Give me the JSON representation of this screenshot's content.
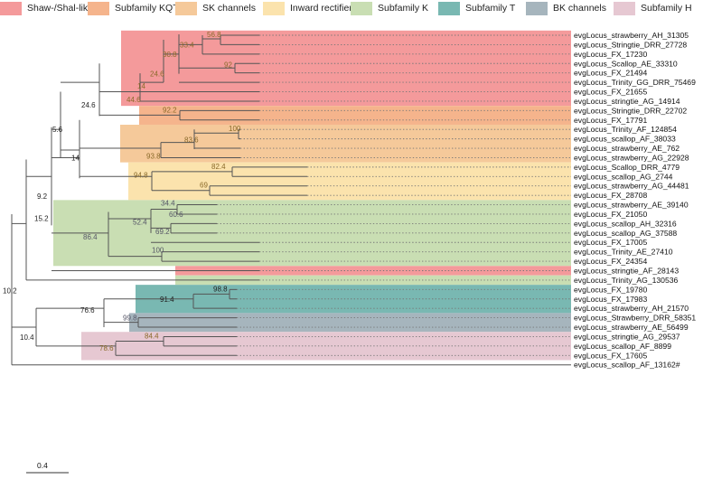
{
  "legend": [
    {
      "label": "Shaw-/Shal-like",
      "color": "#f49a9b"
    },
    {
      "label": "Subfamily KQT",
      "color": "#f5b48c"
    },
    {
      "label": "SK channels",
      "color": "#f5c99a"
    },
    {
      "label": "Inward rectifiers",
      "color": "#fbe3ad"
    },
    {
      "label": "Subfamily K",
      "color": "#c9deb3"
    },
    {
      "label": "Subfamily T",
      "color": "#79b8b2"
    },
    {
      "label": "BK channels",
      "color": "#a6b5bd"
    },
    {
      "label": "Subfamily H",
      "color": "#e6c8d2"
    }
  ],
  "leaves": [
    {
      "label": "evgLocus_strawberry_AH_31305"
    },
    {
      "label": "evgLocus_Stringtie_DRR_27728"
    },
    {
      "label": "evgLocus_FX_17230"
    },
    {
      "label": "evgLocus_Scallop_AE_33310"
    },
    {
      "label": "evgLocus_FX_21494"
    },
    {
      "label": "evgLocus_Trinity_GG_DRR_75469"
    },
    {
      "label": "evgLocus_FX_21655"
    },
    {
      "label": "evgLocus_stringtie_AG_14914"
    },
    {
      "label": "evgLocus_Stringtie_DRR_22702"
    },
    {
      "label": "evgLocus_FX_17791"
    },
    {
      "label": "evgLocus_Trinity_AF_124854"
    },
    {
      "label": "evgLocus_scallop_AF_38033"
    },
    {
      "label": "evgLocus_strawberry_AE_762"
    },
    {
      "label": "evgLocus_strawberry_AG_22928"
    },
    {
      "label": "evgLocus_Scallop_DRR_4779"
    },
    {
      "label": "evgLocus_scallop_AG_2744"
    },
    {
      "label": "evgLocus_strawberry_AG_44481"
    },
    {
      "label": "evgLocus_FX_28708"
    },
    {
      "label": "evgLocus_strawberry_AE_39140"
    },
    {
      "label": "evgLocus_FX_21050"
    },
    {
      "label": "evgLocus_scallop_AH_32316"
    },
    {
      "label": "evgLocus_scallop_AG_37588"
    },
    {
      "label": "evgLocus_FX_17005"
    },
    {
      "label": "evgLocus_Trinity_AE_27410"
    },
    {
      "label": "evgLocus_FX_24354"
    },
    {
      "label": "evgLocus_stringtie_AF_28143"
    },
    {
      "label": "evgLocus_Trinity_AG_130536"
    },
    {
      "label": "evgLocus_FX_19780"
    },
    {
      "label": "evgLocus_FX_17983"
    },
    {
      "label": "evgLocus_strawberry_AH_21570"
    },
    {
      "label": "evgLocus_Strawberry_DRR_58351"
    },
    {
      "label": "evgLocus_strawberry_AE_56499"
    },
    {
      "label": "evgLocus_stringtie_AG_29537"
    },
    {
      "label": "evgLocus_scallop_AF_8899"
    },
    {
      "label": "evgLocus_FX_17605"
    },
    {
      "label": "evgLocus_scallop_AF_13162#",
      "color": "#e8241c"
    }
  ],
  "supports": [
    "56.8",
    "33.4",
    "30.8",
    "92",
    "24.6",
    "14",
    "44.6",
    "24.6",
    "92.2",
    "5.6",
    "100",
    "83.6",
    "93.8",
    "14",
    "82.4",
    "94.8",
    "69",
    "9.2",
    "34.4",
    "60.6",
    "52.4",
    "69.2",
    "86.4",
    "100",
    "15.2",
    "10.2",
    "98.8",
    "91.4",
    "76.6",
    "99.8",
    "84.4",
    "78.6",
    "10.4"
  ],
  "scale_bar": {
    "label": "0.4"
  }
}
